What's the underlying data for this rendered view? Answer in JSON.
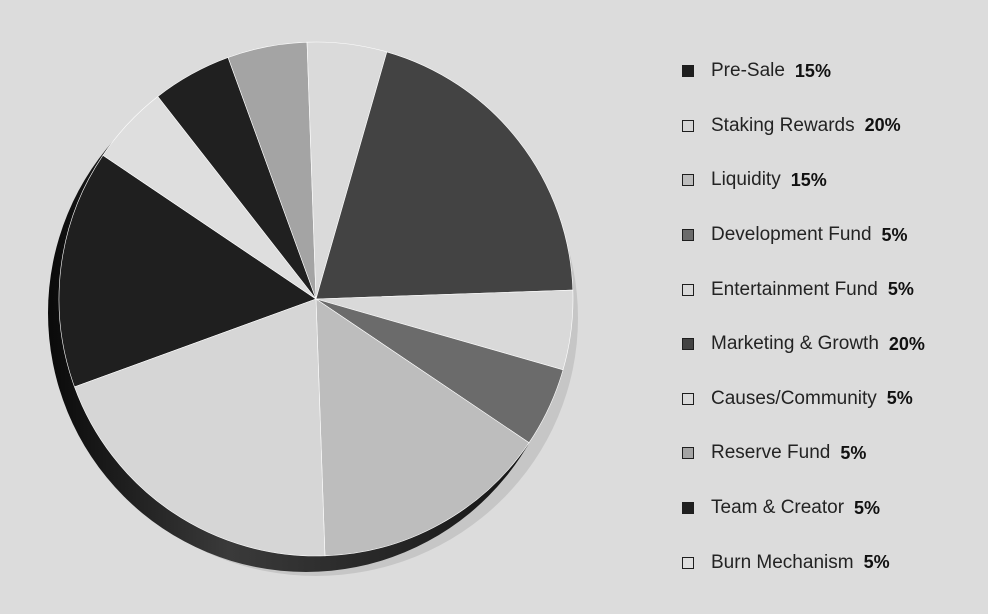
{
  "chart_data": {
    "type": "pie",
    "title": "",
    "slices": [
      {
        "label": "Pre-Sale",
        "pct_text": "15%",
        "value": 15,
        "color": "#1f1f1f"
      },
      {
        "label": "Staking Rewards",
        "pct_text": "20%",
        "value": 20,
        "color": "#d6d6d6"
      },
      {
        "label": "Liquidity",
        "pct_text": "15%",
        "value": 15,
        "color": "#bdbdbd"
      },
      {
        "label": "Development Fund",
        "pct_text": "5%",
        "value": 5,
        "color": "#6b6b6b"
      },
      {
        "label": "Entertainment Fund",
        "pct_text": "5%",
        "value": 5,
        "color": "#d9d9d9"
      },
      {
        "label": "Marketing & Growth",
        "pct_text": "20%",
        "value": 20,
        "color": "#434343"
      },
      {
        "label": "Causes/Community",
        "pct_text": "5%",
        "value": 5,
        "color": "#dadada"
      },
      {
        "label": "Reserve Fund",
        "pct_text": "5%",
        "value": 5,
        "color": "#a4a4a4"
      },
      {
        "label": "Team & Creator",
        "pct_text": "5%",
        "value": 5,
        "color": "#202020"
      },
      {
        "label": "Burn Mechanism",
        "pct_text": "5%",
        "value": 5,
        "color": "#dedede"
      }
    ],
    "legend_position": "right"
  }
}
